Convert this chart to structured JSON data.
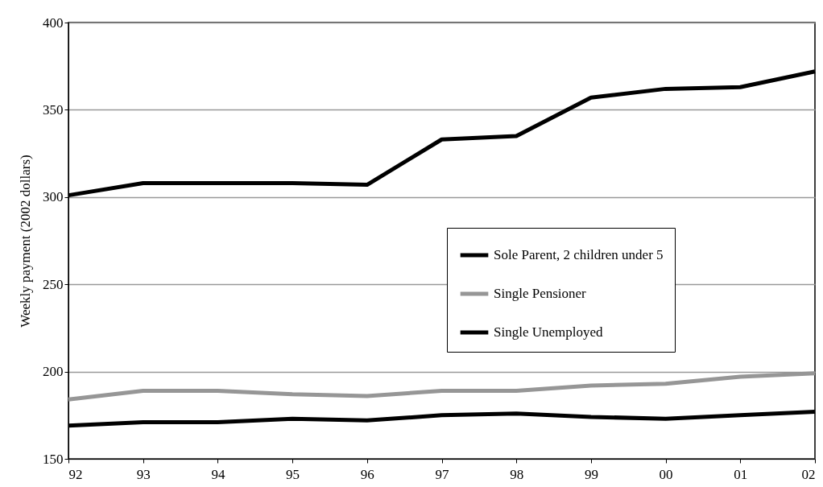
{
  "chart_data": {
    "type": "line",
    "ylabel": "Weekly payment (2002 dollars)",
    "categories": [
      "92",
      "93",
      "94",
      "95",
      "96",
      "97",
      "98",
      "99",
      "00",
      "01",
      "02"
    ],
    "series": [
      {
        "name": "Sole Parent, 2 children under 5",
        "color": "#000000",
        "values": [
          301,
          308,
          308,
          308,
          307,
          333,
          335,
          357,
          362,
          363,
          372
        ]
      },
      {
        "name": "Single Pensioner",
        "color": "#969696",
        "values": [
          184,
          189,
          189,
          187,
          186,
          189,
          189,
          192,
          193,
          197,
          199
        ]
      },
      {
        "name": "Single Unemployed",
        "color": "#000000",
        "values": [
          169,
          171,
          171,
          173,
          172,
          175,
          176,
          174,
          173,
          175,
          177
        ]
      }
    ],
    "ylim": [
      150,
      400
    ],
    "yticks": [
      150,
      200,
      250,
      300,
      350,
      400
    ],
    "grid": "y",
    "legend": "right",
    "line_style": "solid",
    "marker": "none"
  }
}
